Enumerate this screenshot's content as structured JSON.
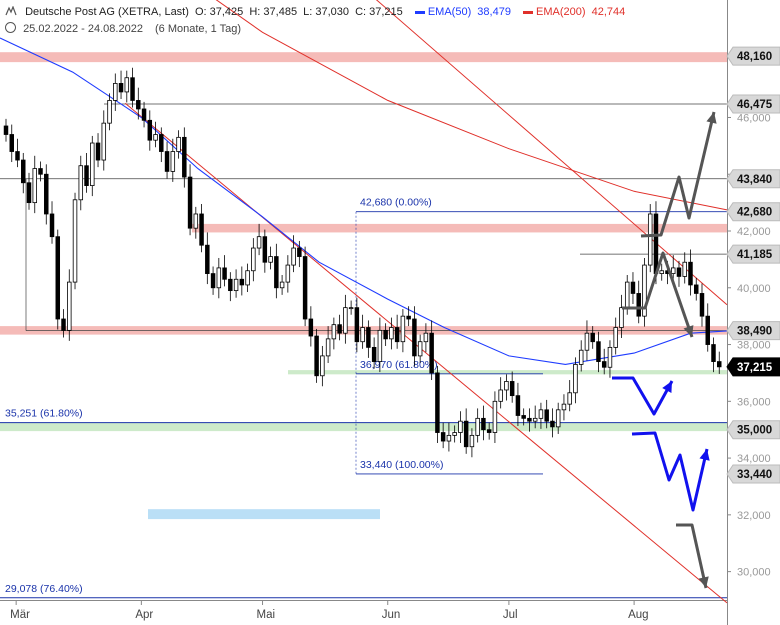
{
  "header": {
    "instrument": "Deutsche Post AG (XETRA, Last)",
    "ohlc": {
      "o": "O: 37,425",
      "h": "H: 37,485",
      "l": "L: 37,030",
      "c": "C: 37,215"
    },
    "ema50_label": "EMA(50)",
    "ema50_value": "38,479",
    "ema200_label": "EMA(200)",
    "ema200_value": "42,744",
    "range": "25.02.2022 - 24.08.2022",
    "period": "(6 Monate, 1 Tag)"
  },
  "colors": {
    "ema50": "#1f3cff",
    "ema200": "#e0302a",
    "trend": "#e0302a",
    "resistance_zone": "#f4b4b0",
    "support_zone": "#c8e8c4",
    "target_zone": "#b3dcf5",
    "fib": "#1a33aa",
    "arrow_gray": "#555555",
    "arrow_blue": "#1111ee",
    "candle": "#000000"
  },
  "chart_data": {
    "type": "candlestick",
    "title": "Deutsche Post AG (XETRA, Last)",
    "x_labels": [
      "Mär",
      "Apr",
      "Mai",
      "Jun",
      "Jul",
      "Aug"
    ],
    "x_range": [
      "2022-02-25",
      "2022-08-24"
    ],
    "ylim": [
      29.0,
      48.8
    ],
    "y_ticks": [
      {
        "v": 30,
        "label": "30,000"
      },
      {
        "v": 32,
        "label": "32,000"
      },
      {
        "v": 34,
        "label": "34,000"
      },
      {
        "v": 36,
        "label": "36,000"
      },
      {
        "v": 38,
        "label": "38,000"
      },
      {
        "v": 40,
        "label": "40,000"
      },
      {
        "v": 42,
        "label": "42,000"
      },
      {
        "v": 44,
        "label": "44,000"
      },
      {
        "v": 46,
        "label": "46,000"
      }
    ],
    "price_labels": [
      {
        "v": 48.16,
        "text": "48,160",
        "style": "gray"
      },
      {
        "v": 46.475,
        "text": "46,475",
        "style": "gray"
      },
      {
        "v": 43.84,
        "text": "43,840",
        "style": "gray"
      },
      {
        "v": 42.68,
        "text": "42,680",
        "style": "gray"
      },
      {
        "v": 41.185,
        "text": "41,185",
        "style": "gray"
      },
      {
        "v": 38.49,
        "text": "38,490",
        "style": "gray"
      },
      {
        "v": 37.215,
        "text": "37,215",
        "style": "black"
      },
      {
        "v": 35.0,
        "text": "35,000",
        "style": "gray"
      },
      {
        "v": 33.44,
        "text": "33,440",
        "style": "gray"
      }
    ],
    "fib_labels": [
      {
        "text": "42,680 (0.00%)",
        "v": 42.68
      },
      {
        "text": "36,970 (61.80%)",
        "v": 36.97
      },
      {
        "text": "33,440 (100.00%)",
        "v": 33.44
      },
      {
        "text": "35,251 (61.80%)",
        "v": 35.251
      },
      {
        "text": "29,078 (76.40%)",
        "v": 29.078
      }
    ],
    "series": [
      {
        "name": "Deutsche Post AG (XETRA, Last)",
        "close": [
          45.4,
          44.8,
          44.5,
          43.7,
          43.0,
          44.2,
          44.0,
          42.6,
          41.8,
          38.9,
          38.5,
          40.2,
          43.1,
          44.3,
          43.6,
          45.1,
          44.5,
          45.8,
          46.6,
          47.2,
          46.9,
          47.4,
          46.6,
          46.3,
          45.9,
          45.2,
          45.4,
          44.8,
          44.1,
          44.8,
          45.3,
          43.9,
          42.1,
          42.6,
          41.5,
          40.5,
          40.0,
          40.7,
          40.3,
          39.9,
          40.3,
          40.1,
          40.6,
          41.4,
          41.8,
          40.9,
          41.1,
          40.0,
          40.2,
          40.8,
          41.4,
          41.1,
          38.9,
          38.3,
          36.9,
          37.6,
          38.2,
          38.7,
          38.4,
          39.3,
          39.3,
          38.1,
          38.6,
          37.9,
          37.4,
          38.5,
          38.2,
          38.6,
          38.1,
          39.0,
          38.9,
          37.6,
          38.1,
          38.4,
          37.0,
          34.9,
          34.6,
          34.8,
          34.9,
          35.3,
          34.4,
          34.8,
          35.4,
          35.0,
          34.9,
          36.0,
          36.4,
          36.7,
          36.2,
          35.5,
          35.4,
          35.3,
          35.4,
          35.7,
          35.3,
          35.1,
          35.7,
          35.9,
          36.3,
          37.3,
          37.8,
          38.4,
          38.1,
          37.4,
          37.2,
          37.9,
          38.6,
          39.3,
          40.2,
          39.8,
          39.0,
          40.8,
          42.6,
          40.5,
          40.6,
          40.5,
          40.7,
          40.4,
          40.9,
          40.1,
          39.8,
          39.0,
          38.0,
          37.4,
          37.215
        ]
      }
    ],
    "ema50": [
      {
        "date": "2022-02-25",
        "value": 48.8
      },
      {
        "date": "2022-03-15",
        "value": 47.6
      },
      {
        "date": "2022-04-01",
        "value": 46.0
      },
      {
        "date": "2022-04-15",
        "value": 44.2
      },
      {
        "date": "2022-05-01",
        "value": 42.5
      },
      {
        "date": "2022-05-15",
        "value": 40.9
      },
      {
        "date": "2022-06-01",
        "value": 39.6
      },
      {
        "date": "2022-06-15",
        "value": 38.6
      },
      {
        "date": "2022-07-01",
        "value": 37.6
      },
      {
        "date": "2022-07-15",
        "value": 37.3
      },
      {
        "date": "2022-08-01",
        "value": 37.7
      },
      {
        "date": "2022-08-15",
        "value": 38.4
      },
      {
        "date": "2022-08-24",
        "value": 38.479
      }
    ],
    "ema200": [
      {
        "date": "2022-02-25",
        "value": 55.0
      },
      {
        "date": "2022-04-01",
        "value": 52.0
      },
      {
        "date": "2022-05-01",
        "value": 49.0
      },
      {
        "date": "2022-06-01",
        "value": 46.6
      },
      {
        "date": "2022-07-01",
        "value": 44.9
      },
      {
        "date": "2022-08-01",
        "value": 43.4
      },
      {
        "date": "2022-08-24",
        "value": 42.744
      }
    ],
    "trendlines": [
      {
        "from": {
          "date": "2022-03-28",
          "v": 46.5
        },
        "to": {
          "date": "2022-08-24",
          "v": 28.9
        }
      },
      {
        "from": {
          "date": "2022-04-20",
          "v": 55.0
        },
        "to": {
          "date": "2022-08-24",
          "v": 39.4
        }
      }
    ],
    "zones": [
      {
        "from": 47.95,
        "to": 48.3,
        "kind": "resistance"
      },
      {
        "from": 41.95,
        "to": 42.25,
        "kind": "resistance"
      },
      {
        "from": 38.35,
        "to": 38.65,
        "kind": "resistance"
      },
      {
        "from": 34.95,
        "to": 35.25,
        "kind": "support"
      },
      {
        "from": 36.95,
        "to": 37.1,
        "kind": "support"
      },
      {
        "from": 31.85,
        "to": 32.2,
        "kind": "target"
      }
    ]
  }
}
